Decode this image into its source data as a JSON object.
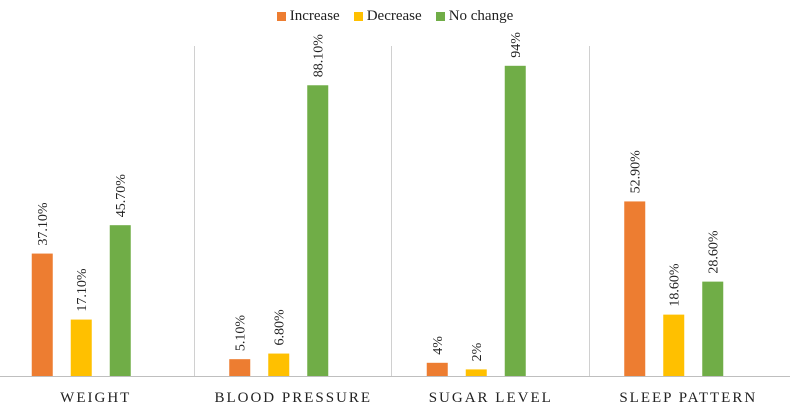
{
  "chart_data": {
    "type": "bar",
    "categories": [
      "WEIGHT",
      "BLOOD PRESSURE",
      "SUGAR LEVEL",
      "SLEEP PATTERN"
    ],
    "series": [
      {
        "name": "Increase",
        "color": "#ED7D31",
        "values": [
          37.1,
          5.1,
          4,
          52.9
        ],
        "labels": [
          "37.10%",
          "5.10%",
          "4%",
          "52.90%"
        ]
      },
      {
        "name": "Decrease",
        "color": "#FFC000",
        "values": [
          17.1,
          6.8,
          2,
          18.6
        ],
        "labels": [
          "17.10%",
          "6.80%",
          "2%",
          "18.60%"
        ]
      },
      {
        "name": "No change",
        "color": "#70AD47",
        "values": [
          45.7,
          88.1,
          94,
          28.6
        ],
        "labels": [
          "45.70%",
          "88.10%",
          "94%",
          "28.60%"
        ]
      }
    ],
    "ylim": [
      0,
      100
    ],
    "grid": false,
    "legend_position": "top"
  }
}
